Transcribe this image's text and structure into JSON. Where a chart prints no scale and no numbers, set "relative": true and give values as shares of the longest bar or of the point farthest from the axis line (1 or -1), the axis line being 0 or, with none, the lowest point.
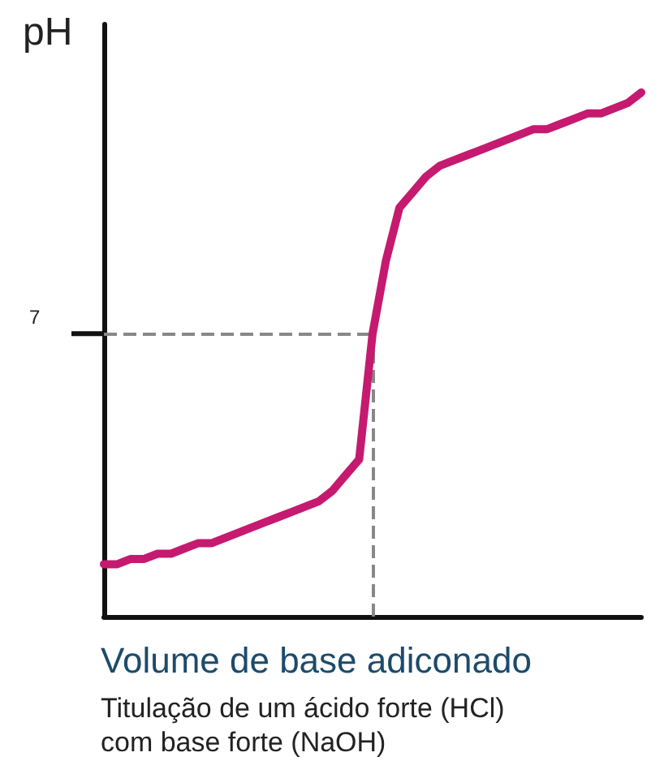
{
  "chart_data": {
    "type": "line",
    "relative": true,
    "ylabel": "pH",
    "xlabel": "Volume de base adiconado",
    "annotations": [
      "7",
      "Titulação de um ácido forte (HCl)",
      "com base forte (NaOH)"
    ],
    "categories": [
      null,
      null,
      null,
      null,
      null,
      null,
      null,
      null,
      null,
      null,
      null,
      null,
      null,
      null,
      null,
      null,
      null,
      null,
      null,
      null,
      null,
      null,
      null,
      null,
      null,
      null,
      null,
      null,
      null,
      null,
      null,
      null,
      null,
      null,
      null,
      null,
      null,
      null,
      null,
      null,
      null
    ],
    "values": [
      0.1,
      0.1,
      0.11,
      0.11,
      0.12,
      0.12,
      0.13,
      0.14,
      0.14,
      0.15,
      0.16,
      0.17,
      0.18,
      0.19,
      0.2,
      0.21,
      0.22,
      0.24,
      0.27,
      0.3,
      0.54,
      0.68,
      0.78,
      0.81,
      0.84,
      0.86,
      0.87,
      0.88,
      0.89,
      0.9,
      0.91,
      0.92,
      0.93,
      0.93,
      0.94,
      0.95,
      0.96,
      0.96,
      0.97,
      0.98,
      1.0
    ],
    "color": "#c51a6f",
    "line_style": "solid",
    "ref_lines": [
      {
        "axis": "y",
        "value": 0.54,
        "color": "#888888",
        "line_style": "dashed"
      }
    ]
  }
}
